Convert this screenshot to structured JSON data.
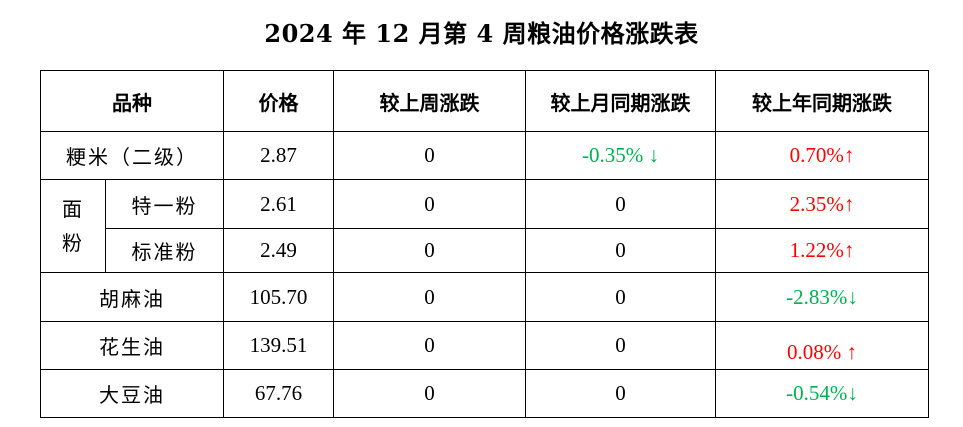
{
  "title": "2024 年 12 月第 4 周粮油价格涨跌表",
  "headers": [
    "品种",
    "价格",
    "较上周涨跌",
    "较上月同期涨跌",
    "较上年同期涨跌"
  ],
  "group_label": [
    "面",
    "粉"
  ],
  "rows": [
    {
      "name": "粳米（二级）",
      "price": "2.87",
      "week": "0",
      "month": "-0.35% ↓",
      "month_trend": "down",
      "year": "0.70%↑",
      "year_trend": "up"
    },
    {
      "name": "特一粉",
      "price": "2.61",
      "week": "0",
      "month": "0",
      "year": "2.35%↑",
      "year_trend": "up"
    },
    {
      "name": "标准粉",
      "price": "2.49",
      "week": "0",
      "month": "0",
      "year": "1.22%↑",
      "year_trend": "up"
    },
    {
      "name": "胡麻油",
      "price": "105.70",
      "week": "0",
      "month": "0",
      "year": "-2.83%↓",
      "year_trend": "down"
    },
    {
      "name": "花生油",
      "price": "139.51",
      "week": "0",
      "month": "0",
      "year": "0.08% ↑",
      "year_trend": "up"
    },
    {
      "name": "大豆油",
      "price": "67.76",
      "week": "0",
      "month": "0",
      "year": "-0.54%↓",
      "year_trend": "down"
    }
  ],
  "colors": {
    "up": "#ff0000",
    "down": "#00b050"
  }
}
